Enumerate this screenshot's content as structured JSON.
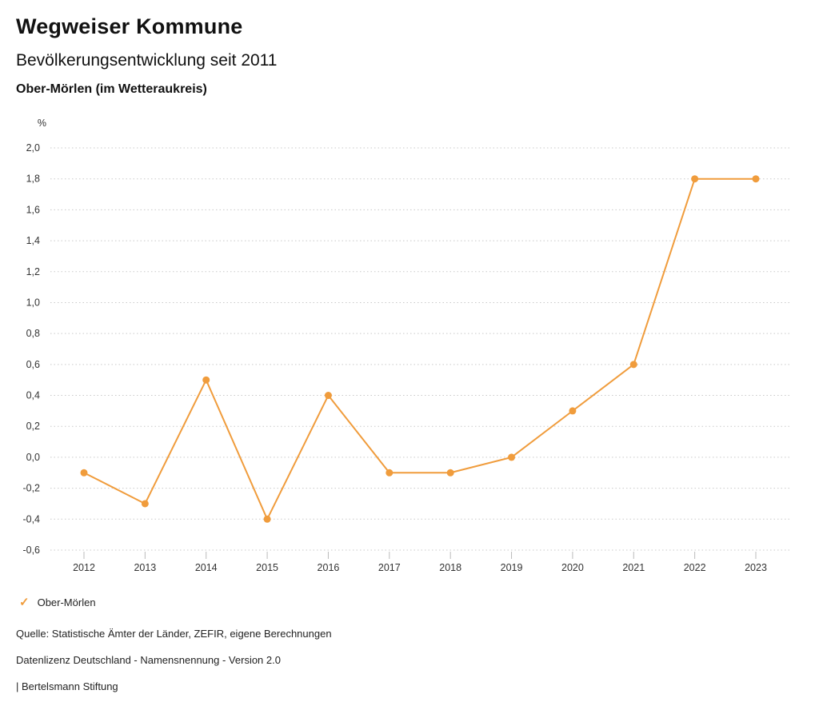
{
  "header": {
    "title": "Wegweiser Kommune",
    "subtitle": "Bevölkerungsentwicklung seit 2011",
    "region": "Ober-Mörlen (im Wetteraukreis)"
  },
  "chart_data": {
    "type": "line",
    "unit_label": "%",
    "x": [
      "2012",
      "2013",
      "2014",
      "2015",
      "2016",
      "2017",
      "2018",
      "2019",
      "2020",
      "2021",
      "2022",
      "2023"
    ],
    "series": [
      {
        "name": "Ober-Mörlen",
        "values": [
          -0.1,
          -0.3,
          0.5,
          -0.4,
          0.4,
          -0.1,
          -0.1,
          0.0,
          0.3,
          0.6,
          1.8,
          1.8
        ],
        "color": "#f09c3c"
      }
    ],
    "ylim": [
      -0.6,
      2.0
    ],
    "ytick_step": 0.2,
    "grid": true,
    "grid_style": "dotted",
    "legend_position": "bottom-left",
    "decimal_separator": ","
  },
  "legend": {
    "items": [
      {
        "label": "Ober-Mörlen",
        "checked": true
      }
    ]
  },
  "footer": {
    "source": "Quelle: Statistische Ämter der Länder, ZEFIR, eigene Berechnungen",
    "license": "Datenlizenz Deutschland - Namensnennung - Version 2.0",
    "attribution": "| Bertelsmann Stiftung"
  },
  "colors": {
    "accent": "#f09c3c",
    "grid": "#c9c9c9",
    "axis_text": "#333333",
    "tick": "#bbbbbb"
  }
}
